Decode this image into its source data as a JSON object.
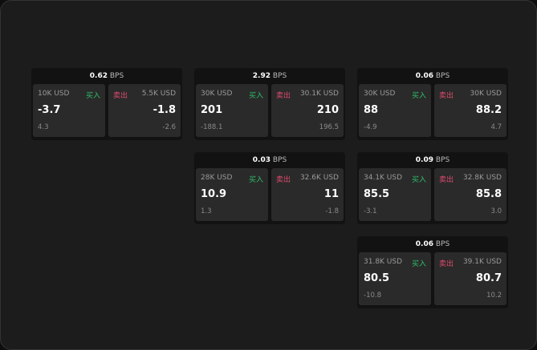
{
  "unit": "BPS",
  "buy_label": "买入",
  "sell_label": "卖出",
  "cards": [
    {
      "spread": "0.62",
      "bid_qty": "10K USD",
      "bid": "-3.7",
      "bid_chg": "4.3",
      "ask_qty": "5.5K USD",
      "ask": "-1.8",
      "ask_chg": "-2.6"
    },
    {
      "spread": "2.92",
      "bid_qty": "30K USD",
      "bid": "201",
      "bid_chg": "-188.1",
      "ask_qty": "30.1K USD",
      "ask": "210",
      "ask_chg": "196.5"
    },
    {
      "spread": "0.06",
      "bid_qty": "30K USD",
      "bid": "88",
      "bid_chg": "-4.9",
      "ask_qty": "30K USD",
      "ask": "88.2",
      "ask_chg": "4.7"
    },
    {
      "spread": "0.03",
      "bid_qty": "28K USD",
      "bid": "10.9",
      "bid_chg": "1.3",
      "ask_qty": "32.6K USD",
      "ask": "11",
      "ask_chg": "-1.8"
    },
    {
      "spread": "0.09",
      "bid_qty": "34.1K USD",
      "bid": "85.5",
      "bid_chg": "-3.1",
      "ask_qty": "32.8K USD",
      "ask": "85.8",
      "ask_chg": "3.0"
    },
    {
      "spread": "0.06",
      "bid_qty": "31.8K USD",
      "bid": "80.5",
      "bid_chg": "-10.8",
      "ask_qty": "39.1K USD",
      "ask": "80.7",
      "ask_chg": "10.2"
    }
  ]
}
